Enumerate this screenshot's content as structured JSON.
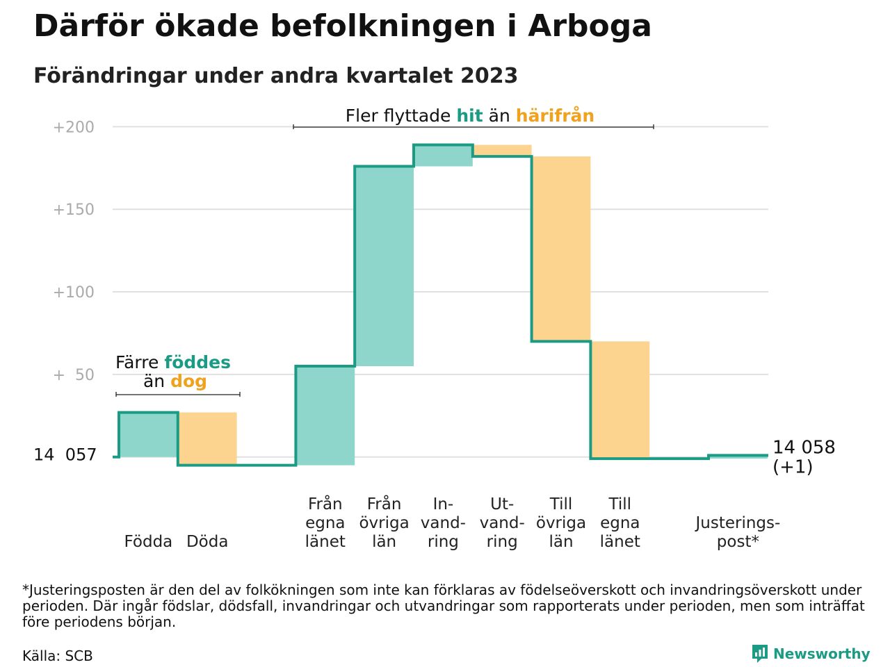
{
  "title": "Därför ökade befolkningen i Arboga",
  "subtitle": "Förändringar under andra kvartalet 2023",
  "footnote": "*Justeringsposten är den del av folkökningen som inte kan förklaras av födelseöverskott och invandringsöverskott under perioden. Där ingår födslar, dödsfall, invandringar och utvandringar som rapporterats under perioden, men som inträffat före periodens början.",
  "source": "Källa: SCB",
  "brand": "Newsworthy",
  "colors": {
    "line": "#1b9a84",
    "increase": "#8ed6cc",
    "decrease": "#fcd490",
    "hit": "#1b9a84",
    "away": "#f0a21e",
    "grid": "#e0e0e0",
    "tick": "#aaaaaa"
  },
  "annotations": {
    "births": {
      "before": "Färre ",
      "a": "föddes",
      "middle": "än ",
      "b": "dog"
    },
    "migration": {
      "before": "Fler flyttade ",
      "a": "hit",
      "middle": " än ",
      "b": "härifrån"
    }
  },
  "chart_data": {
    "type": "waterfall",
    "start_label": "14  057",
    "start_value": 14057,
    "end_label_lines": [
      "14 058",
      "(+1)"
    ],
    "end_value": 14058,
    "ylim": [
      -6,
      201
    ],
    "yticks": [
      {
        "value": 200,
        "label": "+200"
      },
      {
        "value": 150,
        "label": "+150"
      },
      {
        "value": 100,
        "label": "+100"
      },
      {
        "value": 50,
        "label": "+  50"
      }
    ],
    "categories": [
      {
        "lines": [
          "Födda"
        ],
        "change": 27,
        "kind": "increase"
      },
      {
        "lines": [
          "Döda"
        ],
        "change": -32,
        "kind": "decrease"
      },
      {
        "lines": [],
        "change": 0,
        "kind": "gap"
      },
      {
        "lines": [
          "Från",
          "egna",
          "länet"
        ],
        "change": 60,
        "kind": "increase"
      },
      {
        "lines": [
          "Från",
          "övriga",
          "län"
        ],
        "change": 121,
        "kind": "increase"
      },
      {
        "lines": [
          "In-",
          "vand-",
          "ring"
        ],
        "change": 13,
        "kind": "increase"
      },
      {
        "lines": [
          "Ut-",
          "vand-",
          "ring"
        ],
        "change": -7,
        "kind": "decrease"
      },
      {
        "lines": [
          "Till",
          "övriga",
          "län"
        ],
        "change": -112,
        "kind": "decrease"
      },
      {
        "lines": [
          "Till",
          "egna",
          "länet"
        ],
        "change": -71,
        "kind": "decrease"
      },
      {
        "lines": [],
        "change": 0,
        "kind": "gap"
      },
      {
        "lines": [
          "Justerings-",
          "post*"
        ],
        "change": 2,
        "kind": "increase"
      }
    ]
  }
}
